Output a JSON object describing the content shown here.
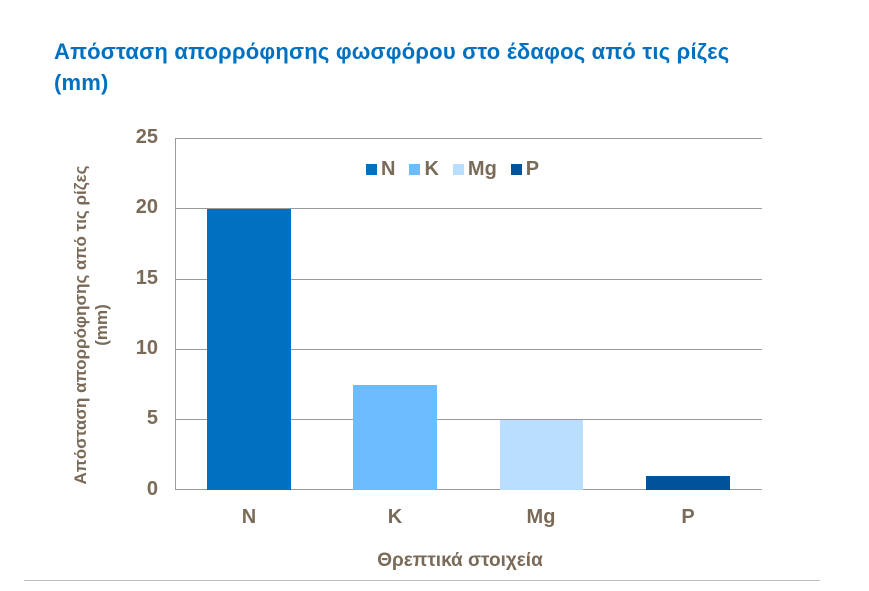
{
  "title": "Απόσταση απορρόφησης φωσφόρου στο έδαφος από τις ρίζες (mm)",
  "chart_data": {
    "type": "bar",
    "title": "Απόσταση απορρόφησης φωσφόρου στο έδαφος από τις ρίζες (mm)",
    "categories": [
      "N",
      "K",
      "Mg",
      "P"
    ],
    "values": [
      20,
      7.5,
      5,
      1
    ],
    "colors": [
      "#0070C0",
      "#6BBDFF",
      "#B9DEFF",
      "#00529B"
    ],
    "xlabel": "Θρεπτικά στοιχεία",
    "ylabel": "Απόσταση απορρόφησης από τις ρίζες (mm)",
    "ylim": [
      0,
      25
    ],
    "yticks": [
      0,
      5,
      10,
      15,
      20,
      25
    ],
    "grid": true,
    "legend": {
      "position": "top-inside",
      "entries": [
        "N",
        "K",
        "Mg",
        "P"
      ]
    }
  },
  "yaxis": {
    "ticks": [
      "0",
      "5",
      "10",
      "15",
      "20",
      "25"
    ],
    "label": "Απόσταση απορρόφησης από τις ρίζες (mm)"
  },
  "xaxis": {
    "ticks": [
      "N",
      "K",
      "Mg",
      "P"
    ],
    "label": "Θρεπτικά στοιχεία"
  },
  "legend": [
    {
      "label": "N",
      "color": "#0070C0"
    },
    {
      "label": "K",
      "color": "#6BBDFF"
    },
    {
      "label": "Mg",
      "color": "#B9DEFF"
    },
    {
      "label": "P",
      "color": "#00529B"
    }
  ]
}
